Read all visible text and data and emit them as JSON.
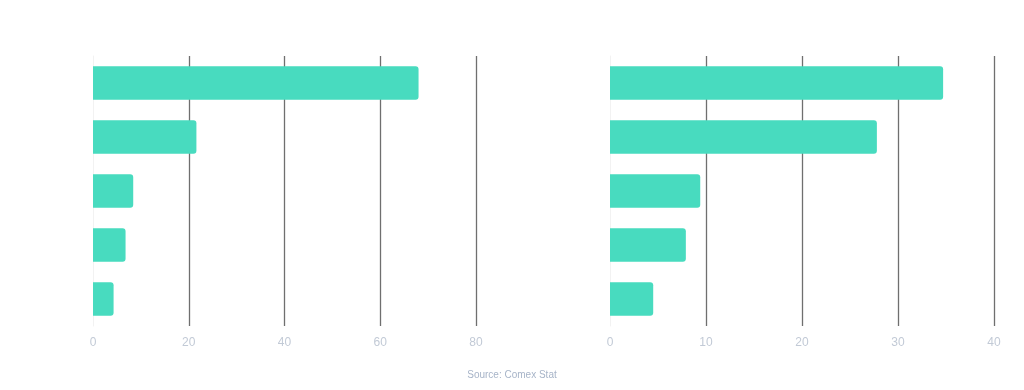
{
  "chart_data": [
    {
      "type": "bar",
      "orientation": "horizontal",
      "categories": [
        null,
        null,
        null,
        null,
        null
      ],
      "values": [
        68,
        21.6,
        8.4,
        6.8,
        4.3
      ],
      "color": "#48dbbf",
      "xlim": [
        0,
        80
      ],
      "xticks": [
        0,
        20,
        40,
        60,
        80
      ],
      "grid": "x"
    },
    {
      "type": "bar",
      "orientation": "horizontal",
      "categories": [
        null,
        null,
        null,
        null,
        null
      ],
      "values": [
        34.7,
        27.8,
        9.4,
        7.9,
        4.5
      ],
      "color": "#48dbbf",
      "xlim": [
        0,
        40
      ],
      "xticks": [
        0,
        10,
        20,
        30,
        40
      ],
      "grid": "x",
      "annotations": [
        "Source: Comex Stat"
      ]
    }
  ]
}
